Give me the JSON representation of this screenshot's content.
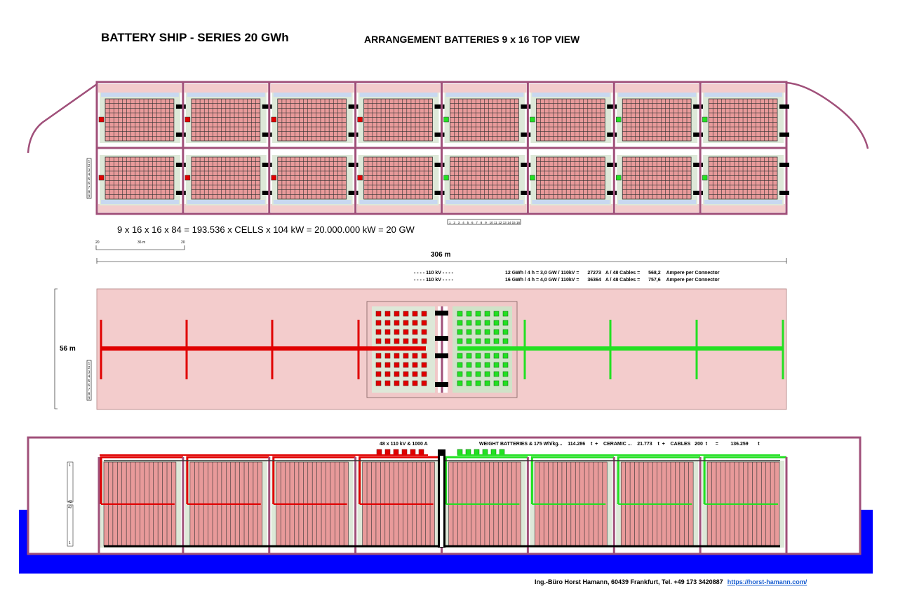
{
  "header": {
    "title": "BATTERY SHIP - SERIES 20 GWh",
    "subtitle": "ARRANGEMENT BATTERIES   9 x 16   TOP VIEW"
  },
  "top_view": {
    "columns": 8,
    "rows": 2,
    "row_labels": [
      "1",
      "2",
      "3",
      "4",
      "5",
      "6",
      "7",
      "8",
      "9"
    ],
    "column_labels": [
      "1",
      "2",
      "3",
      "4",
      "5",
      "6",
      "7",
      "8",
      "9",
      "10",
      "11",
      "12",
      "13",
      "14",
      "15",
      "16"
    ],
    "formula": "9 x 16 x 16 x 84 = 193.536  x  CELLS  x   104 kW     =     20.000.000 kW  = 20 GW",
    "scale_left": "20",
    "scale_mid": "36 m",
    "scale_right": "20",
    "length": "306 m"
  },
  "electrical": {
    "voltage_label_1": "- - - -   110 kV   - - - -",
    "voltage_label_2": "- - - -   110 kV   - - - -",
    "line1": {
      "gwh": "12  GWh  / 4 h = 3,0 GW / 110kV =",
      "amps": "27273",
      "cables": "A / 48 Cables =",
      "per": "568,2",
      "unit": "Ampere per Connector"
    },
    "line2": {
      "gwh": "16  GWh  / 4 h = 4,0 GW / 110kV =",
      "amps": "36364",
      "cables": "A / 48 Cables =",
      "per": "757,6",
      "unit": "Ampere per Connector"
    }
  },
  "mid_view": {
    "width": "56 m"
  },
  "side_view": {
    "connectors": "48 x  110 kV & 1000 A",
    "weight": "WEIGHT BATTERIES & 175 Wh/kg...    114.286    t  +    CERAMIC ...    21.773    t  +    CABLES   200  t      =         136.259       t",
    "scale_top": "1",
    "scale_mid1": "42",
    "scale_mid2": "42",
    "scale_bottom": "1"
  },
  "colors": {
    "hull": "#a0507a",
    "cell": "#e89a9a",
    "red": "#e00000",
    "green": "#22e022",
    "water": "#0000ff",
    "deck": "#f3cccc"
  },
  "footer": {
    "text": "Ing.-Büro Horst Hamann, 60439 Frankfurt, Tel. +49 173 3420887",
    "link": "https://horst-hamann.com/"
  }
}
